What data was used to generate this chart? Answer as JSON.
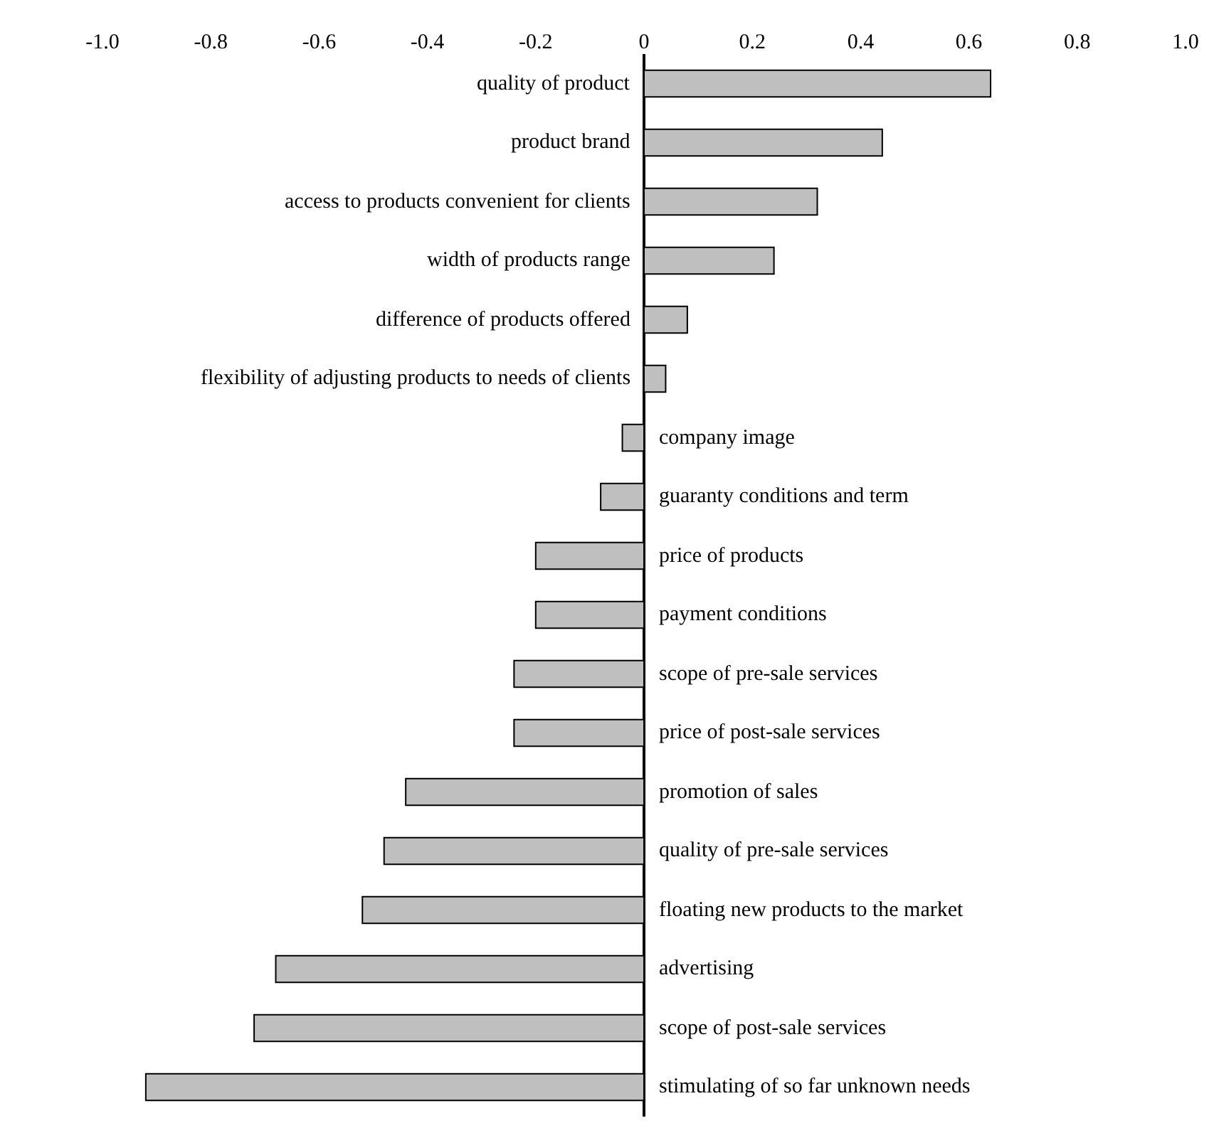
{
  "chart_data": {
    "type": "bar",
    "orientation": "horizontal",
    "categories": [
      "quality of product",
      "product brand",
      "access to products convenient for clients",
      "width of products range",
      "difference of products offered",
      "flexibility of adjusting products to needs of clients",
      "company image",
      "guaranty conditions and term",
      "price of products",
      "payment conditions",
      "scope of pre-sale services",
      "price of post-sale services",
      "promotion of sales",
      "quality of pre-sale services",
      "floating new products to the market",
      "advertising",
      "scope of post-sale services",
      "stimulating of so far unknown needs"
    ],
    "values": [
      0.64,
      0.44,
      0.32,
      0.24,
      0.08,
      0.04,
      -0.04,
      -0.08,
      -0.2,
      -0.2,
      -0.24,
      -0.24,
      -0.44,
      -0.48,
      -0.52,
      -0.68,
      -0.72,
      -0.92
    ],
    "color": "#bfbfbf",
    "xlim": [
      -1.0,
      1.0
    ],
    "xticks": [
      {
        "value": -1.0,
        "label": "-1.0"
      },
      {
        "value": -0.8,
        "label": "-0.8"
      },
      {
        "value": -0.6,
        "label": "-0.6"
      },
      {
        "value": -0.4,
        "label": "-0.4"
      },
      {
        "value": -0.2,
        "label": "-0.2"
      },
      0,
      0.2,
      0.4,
      0.6,
      0.8,
      {
        "value": 1.0,
        "label": "1.0"
      }
    ]
  }
}
